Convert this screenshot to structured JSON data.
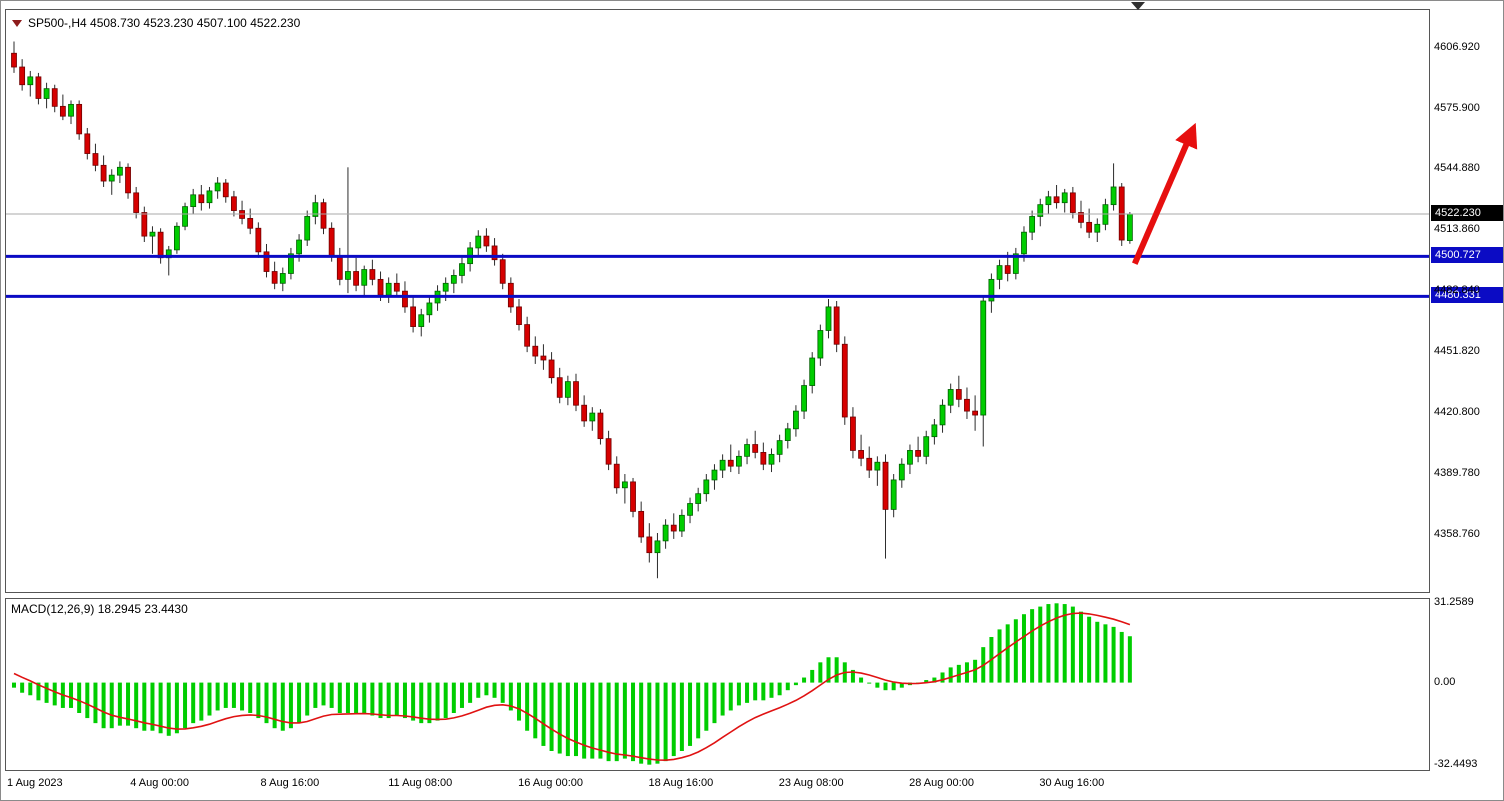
{
  "window": {
    "title_ohlc": "SP500-,H4 4508.730 4523.230 4507.100 4522.230"
  },
  "header": {
    "symbol": "SP500-",
    "period": "H4",
    "open": "4508.730",
    "high": "4523.230",
    "low": "4507.100",
    "close": "4522.230"
  },
  "macd_panel": {
    "label": "MACD(12,26,9) 18.2945 23.4430",
    "indicator": "MACD",
    "params": "12,26,9",
    "main_value": "18.2945",
    "signal_value": "23.4430",
    "axis": [
      {
        "label": "31.2589",
        "value": 31.2589
      },
      {
        "label": "0.00",
        "value": 0
      },
      {
        "label": "-32.4493",
        "value": -32.4493
      }
    ]
  },
  "price_axis": {
    "ticks": [
      {
        "label": "4606.920",
        "value": 4606.92
      },
      {
        "label": "4575.900",
        "value": 4575.9
      },
      {
        "label": "4544.880",
        "value": 4544.88
      },
      {
        "label": "4513.860",
        "value": 4513.86
      },
      {
        "label": "4482.840",
        "value": 4482.84
      },
      {
        "label": "4451.820",
        "value": 4451.82
      },
      {
        "label": "4420.800",
        "value": 4420.8
      },
      {
        "label": "4389.780",
        "value": 4389.78
      },
      {
        "label": "4358.760",
        "value": 4358.76
      }
    ],
    "badges": [
      {
        "name": "current",
        "label": "4522.230",
        "value": 4522.23,
        "bg": "#000000"
      },
      {
        "name": "level1",
        "label": "4500.727",
        "value": 4500.727,
        "bg": "#0b0bc4"
      },
      {
        "name": "level2",
        "label": "4480.331",
        "value": 4480.331,
        "bg": "#0b0bc4"
      }
    ]
  },
  "time_axis": {
    "ticks": [
      {
        "label": "1 Aug 2023",
        "bar": 0
      },
      {
        "label": "4 Aug 00:00",
        "bar": 18
      },
      {
        "label": "8 Aug 16:00",
        "bar": 34
      },
      {
        "label": "11 Aug 08:00",
        "bar": 50
      },
      {
        "label": "16 Aug 00:00",
        "bar": 66
      },
      {
        "label": "18 Aug 16:00",
        "bar": 82
      },
      {
        "label": "23 Aug 08:00",
        "bar": 98
      },
      {
        "label": "28 Aug 00:00",
        "bar": 114
      },
      {
        "label": "30 Aug 16:00",
        "bar": 130
      }
    ]
  },
  "colors": {
    "up_fill": "#00cd00",
    "up_stroke": "#005f00",
    "down_fill": "#d60000",
    "down_stroke": "#6f0000",
    "wick": "#2b2b2b",
    "level_line": "#0b0bc4",
    "current_line": "#a8a8a8",
    "macd_hist": "#00cd00",
    "macd_signal": "#e01212",
    "arrow": "#e60f0f",
    "text": "#000000"
  },
  "chart_data": {
    "type": "candlestick",
    "symbol": "SP500-",
    "timeframe": "H4",
    "title": "SP500-,H4",
    "last_ohlc": {
      "open": 4508.73,
      "high": 4523.23,
      "low": 4507.1,
      "close": 4522.23
    },
    "price_axis_range": {
      "max": 4626,
      "min": 4330
    },
    "current_price": 4522.23,
    "horizontal_levels": [
      4500.727,
      4480.331
    ],
    "annotation_arrow": {
      "from_bar": 137.6,
      "from_price": 4497,
      "to_bar": 144.5,
      "to_price": 4563
    },
    "candles": [
      [
        4604,
        4610,
        4594,
        4597
      ],
      [
        4597,
        4601,
        4585,
        4588
      ],
      [
        4588,
        4595,
        4582,
        4592
      ],
      [
        4592,
        4594,
        4578,
        4581
      ],
      [
        4581,
        4589,
        4576,
        4586
      ],
      [
        4586,
        4588,
        4574,
        4577
      ],
      [
        4577,
        4583,
        4570,
        4572
      ],
      [
        4572,
        4580,
        4568,
        4578
      ],
      [
        4578,
        4580,
        4560,
        4563
      ],
      [
        4563,
        4566,
        4550,
        4553
      ],
      [
        4553,
        4558,
        4544,
        4547
      ],
      [
        4547,
        4552,
        4536,
        4539
      ],
      [
        4539,
        4545,
        4532,
        4542
      ],
      [
        4542,
        4549,
        4538,
        4546
      ],
      [
        4546,
        4548,
        4530,
        4533
      ],
      [
        4533,
        4536,
        4520,
        4523
      ],
      [
        4523,
        4526,
        4508,
        4511
      ],
      [
        4511,
        4516,
        4502,
        4513
      ],
      [
        4513,
        4515,
        4497,
        4500
      ],
      [
        4500,
        4506,
        4491,
        4504
      ],
      [
        4504,
        4518,
        4502,
        4516
      ],
      [
        4516,
        4528,
        4514,
        4526
      ],
      [
        4526,
        4535,
        4522,
        4532
      ],
      [
        4532,
        4537,
        4524,
        4528
      ],
      [
        4528,
        4536,
        4525,
        4534
      ],
      [
        4534,
        4541,
        4530,
        4538
      ],
      [
        4538,
        4540,
        4528,
        4531
      ],
      [
        4531,
        4534,
        4521,
        4524
      ],
      [
        4524,
        4529,
        4517,
        4520
      ],
      [
        4520,
        4525,
        4512,
        4515
      ],
      [
        4515,
        4518,
        4500,
        4503
      ],
      [
        4503,
        4507,
        4490,
        4493
      ],
      [
        4493,
        4498,
        4484,
        4487
      ],
      [
        4487,
        4495,
        4483,
        4492
      ],
      [
        4492,
        4505,
        4489,
        4502
      ],
      [
        4502,
        4512,
        4498,
        4509
      ],
      [
        4509,
        4524,
        4506,
        4521
      ],
      [
        4521,
        4532,
        4517,
        4528
      ],
      [
        4528,
        4530,
        4512,
        4515
      ],
      [
        4515,
        4518,
        4498,
        4501
      ],
      [
        4501,
        4505,
        4486,
        4489
      ],
      [
        4489,
        4546,
        4482,
        4493
      ],
      [
        4493,
        4500,
        4483,
        4486
      ],
      [
        4486,
        4496,
        4481,
        4494
      ],
      [
        4494,
        4499,
        4486,
        4489
      ],
      [
        4489,
        4493,
        4478,
        4481
      ],
      [
        4481,
        4490,
        4477,
        4487
      ],
      [
        4487,
        4492,
        4480,
        4483
      ],
      [
        4483,
        4488,
        4472,
        4475
      ],
      [
        4475,
        4480,
        4462,
        4465
      ],
      [
        4465,
        4474,
        4460,
        4471
      ],
      [
        4471,
        4480,
        4467,
        4477
      ],
      [
        4477,
        4486,
        4473,
        4483
      ],
      [
        4483,
        4490,
        4478,
        4487
      ],
      [
        4487,
        4494,
        4482,
        4491
      ],
      [
        4491,
        4500,
        4487,
        4497
      ],
      [
        4497,
        4508,
        4493,
        4505
      ],
      [
        4505,
        4514,
        4501,
        4511
      ],
      [
        4511,
        4515,
        4503,
        4506
      ],
      [
        4506,
        4510,
        4496,
        4499
      ],
      [
        4499,
        4502,
        4484,
        4487
      ],
      [
        4487,
        4490,
        4472,
        4475
      ],
      [
        4475,
        4479,
        4463,
        4466
      ],
      [
        4466,
        4470,
        4452,
        4455
      ],
      [
        4455,
        4460,
        4446,
        4450
      ],
      [
        4450,
        4456,
        4443,
        4448
      ],
      [
        4448,
        4452,
        4436,
        4439
      ],
      [
        4439,
        4444,
        4426,
        4429
      ],
      [
        4429,
        4440,
        4425,
        4437
      ],
      [
        4437,
        4441,
        4422,
        4425
      ],
      [
        4425,
        4430,
        4414,
        4417
      ],
      [
        4417,
        4424,
        4412,
        4421
      ],
      [
        4421,
        4423,
        4405,
        4408
      ],
      [
        4408,
        4412,
        4392,
        4395
      ],
      [
        4395,
        4399,
        4380,
        4383
      ],
      [
        4383,
        4390,
        4375,
        4386
      ],
      [
        4386,
        4388,
        4368,
        4371
      ],
      [
        4371,
        4376,
        4355,
        4358
      ],
      [
        4358,
        4365,
        4345,
        4350
      ],
      [
        4350,
        4360,
        4337,
        4356
      ],
      [
        4356,
        4367,
        4352,
        4364
      ],
      [
        4364,
        4370,
        4357,
        4361
      ],
      [
        4361,
        4372,
        4358,
        4369
      ],
      [
        4369,
        4378,
        4365,
        4375
      ],
      [
        4375,
        4383,
        4371,
        4380
      ],
      [
        4380,
        4390,
        4376,
        4387
      ],
      [
        4387,
        4395,
        4382,
        4392
      ],
      [
        4392,
        4400,
        4388,
        4397
      ],
      [
        4397,
        4405,
        4391,
        4394
      ],
      [
        4394,
        4402,
        4390,
        4399
      ],
      [
        4399,
        4408,
        4395,
        4405
      ],
      [
        4405,
        4412,
        4398,
        4401
      ],
      [
        4401,
        4406,
        4392,
        4395
      ],
      [
        4395,
        4403,
        4391,
        4400
      ],
      [
        4400,
        4410,
        4396,
        4407
      ],
      [
        4407,
        4416,
        4403,
        4413
      ],
      [
        4413,
        4425,
        4409,
        4422
      ],
      [
        4422,
        4438,
        4418,
        4435
      ],
      [
        4435,
        4452,
        4431,
        4449
      ],
      [
        4449,
        4466,
        4445,
        4463
      ],
      [
        4463,
        4479,
        4459,
        4475
      ],
      [
        4475,
        4478,
        4452,
        4456
      ],
      [
        4456,
        4460,
        4415,
        4419
      ],
      [
        4419,
        4424,
        4398,
        4402
      ],
      [
        4402,
        4410,
        4394,
        4398
      ],
      [
        4398,
        4404,
        4388,
        4392
      ],
      [
        4392,
        4399,
        4384,
        4396
      ],
      [
        4396,
        4400,
        4347,
        4372
      ],
      [
        4372,
        4390,
        4368,
        4387
      ],
      [
        4387,
        4398,
        4383,
        4395
      ],
      [
        4395,
        4405,
        4390,
        4402
      ],
      [
        4402,
        4409,
        4396,
        4399
      ],
      [
        4399,
        4412,
        4395,
        4409
      ],
      [
        4409,
        4418,
        4405,
        4415
      ],
      [
        4415,
        4428,
        4411,
        4425
      ],
      [
        4425,
        4436,
        4421,
        4433
      ],
      [
        4433,
        4440,
        4424,
        4428
      ],
      [
        4428,
        4434,
        4418,
        4422
      ],
      [
        4422,
        4430,
        4412,
        4420
      ],
      [
        4420,
        4480,
        4404,
        4478
      ],
      [
        4478,
        4492,
        4472,
        4489
      ],
      [
        4489,
        4499,
        4484,
        4496
      ],
      [
        4496,
        4503,
        4488,
        4492
      ],
      [
        4492,
        4505,
        4489,
        4502
      ],
      [
        4502,
        4516,
        4498,
        4513
      ],
      [
        4513,
        4524,
        4509,
        4521
      ],
      [
        4521,
        4530,
        4516,
        4527
      ],
      [
        4527,
        4534,
        4522,
        4531
      ],
      [
        4531,
        4537,
        4525,
        4528
      ],
      [
        4528,
        4535,
        4523,
        4533
      ],
      [
        4533,
        4536,
        4520,
        4523
      ],
      [
        4523,
        4529,
        4515,
        4518
      ],
      [
        4518,
        4525,
        4510,
        4513
      ],
      [
        4513,
        4520,
        4508,
        4517
      ],
      [
        4517,
        4530,
        4514,
        4527
      ],
      [
        4527,
        4548,
        4524,
        4536
      ],
      [
        4536,
        4538,
        4506,
        4509
      ],
      [
        4508.73,
        4523.23,
        4507.1,
        4522.23
      ]
    ],
    "macd": {
      "type": "histogram+signal",
      "params": "12,26,9",
      "ylim": [
        -32.4493,
        31.2589
      ],
      "scale": {
        "max": 33,
        "min": -34.5
      },
      "signal_seed": 5,
      "signal_smoothing": 0.2,
      "values": [
        -2,
        -4,
        -5,
        -7,
        -8,
        -9,
        -10,
        -10,
        -12,
        -14,
        -16,
        -18,
        -18,
        -17,
        -17,
        -18,
        -19,
        -19,
        -20,
        -21,
        -20,
        -18,
        -16,
        -15,
        -13,
        -11,
        -10,
        -10,
        -11,
        -12,
        -14,
        -16,
        -18,
        -19,
        -18,
        -16,
        -13,
        -10,
        -9,
        -10,
        -12,
        -12,
        -12,
        -12,
        -13,
        -14,
        -14,
        -13,
        -14,
        -15,
        -16,
        -16,
        -15,
        -14,
        -12,
        -10,
        -8,
        -6,
        -5,
        -6,
        -8,
        -11,
        -15,
        -19,
        -22,
        -25,
        -27,
        -28,
        -29,
        -29,
        -30,
        -30,
        -30,
        -31,
        -31,
        -30,
        -31,
        -32,
        -32.4,
        -32,
        -31,
        -29,
        -27,
        -25,
        -22,
        -19,
        -16,
        -13,
        -11,
        -9,
        -8,
        -7,
        -7,
        -6,
        -5,
        -3,
        -1,
        2,
        5,
        8,
        10,
        10,
        8,
        5,
        2,
        0,
        -2,
        -3,
        -3,
        -2,
        -1,
        0,
        1,
        2,
        4,
        6,
        7,
        8,
        9,
        14,
        18,
        21,
        23,
        25,
        27,
        29,
        30,
        31,
        31.3,
        31,
        30,
        28,
        26,
        24,
        23,
        22,
        20,
        18.3
      ]
    }
  }
}
